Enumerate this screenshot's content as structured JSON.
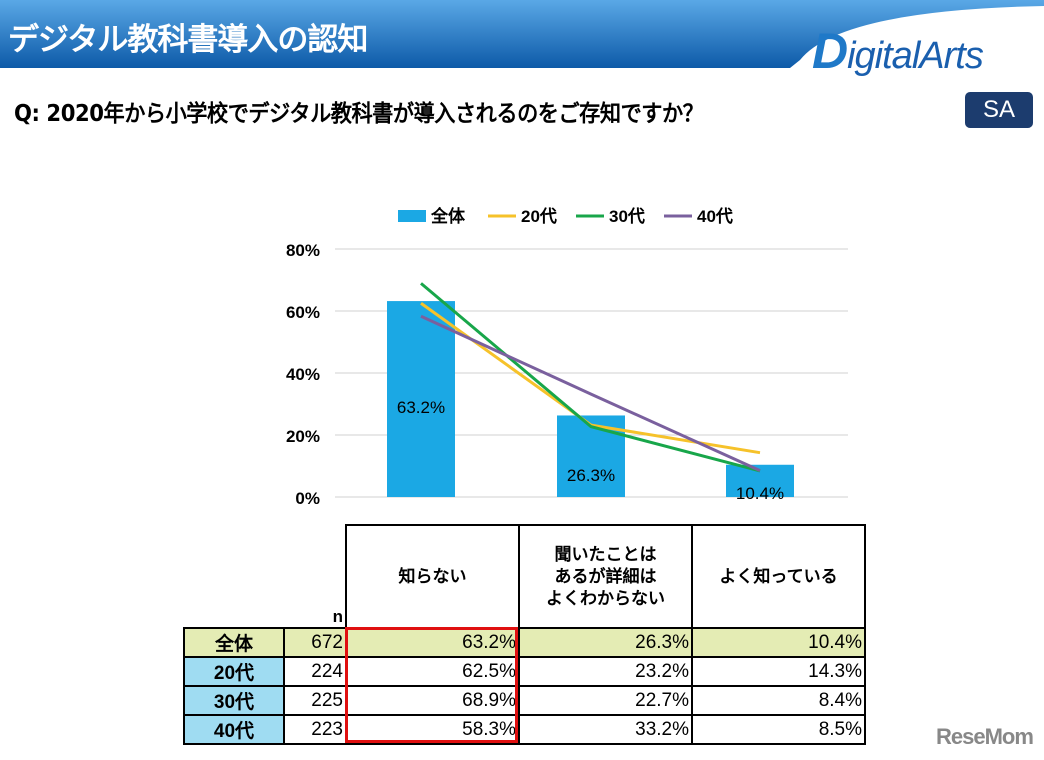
{
  "header": {
    "title": "デジタル教科書導入の認知",
    "logo": "DigitalArts"
  },
  "question": "Q:  2020年から小学校でデジタル教科書が導入されるのをご存知ですか？",
  "badge": "SA",
  "colors": {
    "bar": "#1ba8e4",
    "20代": "#f6c22a",
    "30代": "#18a64a",
    "40代": "#7a609e"
  },
  "chart_data": {
    "type": "bar+line",
    "categories": [
      "知らない",
      "聞いたことはあるが詳細はよくわからない",
      "よく知っている"
    ],
    "yticks": [
      "0%",
      "20%",
      "40%",
      "60%",
      "80%"
    ],
    "ylim": [
      0,
      80
    ],
    "grid": true,
    "legend": "top",
    "series": [
      {
        "name": "全体",
        "type": "bar",
        "values": [
          63.2,
          26.3,
          10.4
        ],
        "labels": [
          "63.2%",
          "26.3%",
          "10.4%"
        ]
      },
      {
        "name": "20代",
        "type": "line",
        "values": [
          62.5,
          23.2,
          14.3
        ]
      },
      {
        "name": "30代",
        "type": "line",
        "values": [
          68.9,
          22.7,
          8.4
        ]
      },
      {
        "name": "40代",
        "type": "line",
        "values": [
          58.3,
          33.2,
          8.5
        ]
      }
    ]
  },
  "table": {
    "n_label": "n",
    "headers": [
      "知らない",
      "聞いたことは\nあるが詳細は\nよくわからない",
      "よく知っている"
    ],
    "rows": [
      {
        "label": "全体",
        "n": "672",
        "values": [
          "63.2%",
          "26.3%",
          "10.4%"
        ]
      },
      {
        "label": "20代",
        "n": "224",
        "values": [
          "62.5%",
          "23.2%",
          "14.3%"
        ]
      },
      {
        "label": "30代",
        "n": "225",
        "values": [
          "68.9%",
          "22.7%",
          "8.4%"
        ]
      },
      {
        "label": "40代",
        "n": "223",
        "values": [
          "58.3%",
          "33.2%",
          "8.5%"
        ]
      }
    ]
  },
  "watermark": "ReseMom"
}
